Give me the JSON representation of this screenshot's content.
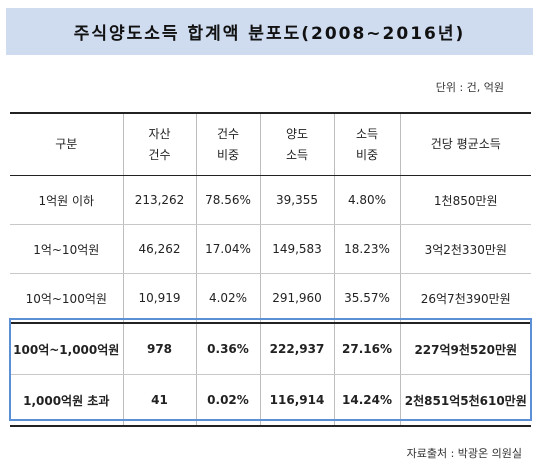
{
  "title": "주식양도소득  합계액  분포도(2008~2016년)",
  "unit_note": "단위 : 건, 억원",
  "source_note": "자료출처 : 박광온  의원실",
  "table": {
    "headers": [
      [
        "구분"
      ],
      [
        "자산",
        "건수"
      ],
      [
        "건수",
        "비중"
      ],
      [
        "양도",
        "소득"
      ],
      [
        "소득",
        "비중"
      ],
      [
        "건당  평균소득"
      ]
    ],
    "rows": [
      {
        "label": "1억원  이하",
        "count": "213,262",
        "count_share": "78.56%",
        "income": "39,355",
        "income_share": "4.80%",
        "avg": "1천850만원",
        "bold": false
      },
      {
        "label": "1억~10억원",
        "count": "46,262",
        "count_share": "17.04%",
        "income": "149,583",
        "income_share": "18.23%",
        "avg": "3억2천330만원",
        "bold": false
      },
      {
        "label": "10억~100억원",
        "count": "10,919",
        "count_share": "4.02%",
        "income": "291,960",
        "income_share": "35.57%",
        "avg": "26억7천390만원",
        "bold": false
      },
      {
        "label": "100억~1,000억원",
        "count": "978",
        "count_share": "0.36%",
        "income": "222,937",
        "income_share": "27.16%",
        "avg": "227억9천520만원",
        "bold": true
      },
      {
        "label": "1,000억원  초과",
        "count": "41",
        "count_share": "0.02%",
        "income": "116,914",
        "income_share": "14.24%",
        "avg": "2천851억5천610만원",
        "bold": true
      }
    ]
  },
  "colors": {
    "title_background": "#cfdcf0",
    "highlight_border": "#5b8fd6"
  }
}
